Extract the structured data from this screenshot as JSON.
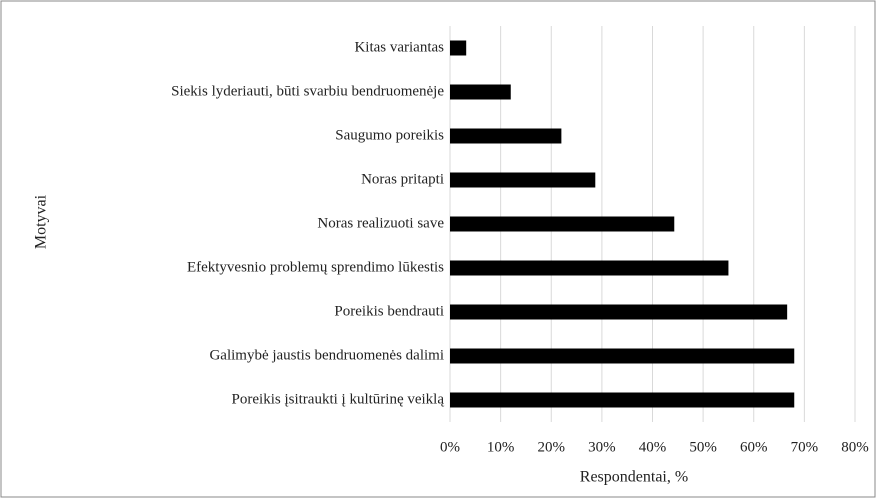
{
  "chart_data": {
    "type": "bar",
    "orientation": "horizontal",
    "categories": [
      "Kitas variantas",
      "Siekis lyderiauti, būti svarbiu bendruomenėje",
      "Saugumo poreikis",
      "Noras pritapti",
      "Noras realizuoti save",
      "Efektyvesnio problemų sprendimo lūkestis",
      "Poreikis bendrauti",
      "Galimybė jaustis bendruomenės dalimi",
      "Poreikis įsitraukti į kultūrinę veiklą"
    ],
    "values": [
      3.2,
      12,
      22,
      28.7,
      44.3,
      55,
      66.6,
      68,
      68
    ],
    "color": "#000000",
    "xlim": [
      0,
      80
    ],
    "xticks": [
      {
        "value": 0,
        "label": "0%"
      },
      {
        "value": 10,
        "label": "10%"
      },
      {
        "value": 20,
        "label": "20%"
      },
      {
        "value": 30,
        "label": "30%"
      },
      {
        "value": 40,
        "label": "40%"
      },
      {
        "value": 50,
        "label": "50%"
      },
      {
        "value": 60,
        "label": "60%"
      },
      {
        "value": 70,
        "label": "70%"
      },
      {
        "value": 80,
        "label": "80%"
      }
    ],
    "x_label": "Respondentai, %",
    "y_label": "Motyvai",
    "grid": true
  }
}
